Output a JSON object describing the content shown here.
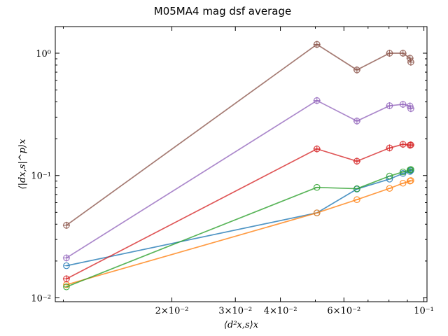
{
  "chart_data": {
    "type": "line",
    "title": "M05MA4 mag dsf average",
    "xlabel": "⟨d²x,s⟩x",
    "ylabel": "⟨|dx,s|^p⟩x",
    "xscale": "log",
    "yscale": "log",
    "xlim": [
      0.0095,
      0.102
    ],
    "ylim": [
      0.0093,
      1.65
    ],
    "x_major_ticks": [
      {
        "value": 0.02,
        "label": "2×10⁻²"
      },
      {
        "value": 0.03,
        "label": "3×10⁻²"
      },
      {
        "value": 0.04,
        "label": "4×10⁻²"
      },
      {
        "value": 0.06,
        "label": "6×10⁻²"
      },
      {
        "value": 0.1,
        "label": "10⁻¹"
      }
    ],
    "y_major_ticks": [
      {
        "value": 0.01,
        "label": "10⁻²"
      },
      {
        "value": 0.1,
        "label": "10⁻¹"
      },
      {
        "value": 1,
        "label": "10⁰"
      }
    ],
    "grid": false,
    "x": [
      0.0102,
      0.0505,
      0.0652,
      0.0803,
      0.0875,
      0.0915,
      0.092
    ],
    "series": [
      {
        "marker": "o",
        "color": "#1f77b4",
        "values": [
          0.0183,
          0.0495,
          0.0775,
          0.0935,
          0.104,
          0.108,
          0.11
        ]
      },
      {
        "marker": "o",
        "color": "#ff7f0e",
        "values": [
          0.0128,
          0.0495,
          0.0635,
          0.0785,
          0.0865,
          0.09,
          0.091
        ]
      },
      {
        "marker": "o",
        "color": "#2ca02c",
        "values": [
          0.0123,
          0.08,
          0.078,
          0.099,
          0.107,
          0.111,
          0.112
        ]
      },
      {
        "marker": "+o",
        "color": "#d62728",
        "values": [
          0.0143,
          0.165,
          0.131,
          0.168,
          0.18,
          0.177,
          0.178
        ]
      },
      {
        "marker": "+o",
        "color": "#9467bd",
        "values": [
          0.0212,
          0.41,
          0.279,
          0.372,
          0.382,
          0.37,
          0.352
        ]
      },
      {
        "marker": "+o",
        "color": "#8c564b",
        "values": [
          0.0392,
          1.18,
          0.73,
          1.0,
          1.0,
          0.91,
          0.845
        ]
      }
    ]
  }
}
